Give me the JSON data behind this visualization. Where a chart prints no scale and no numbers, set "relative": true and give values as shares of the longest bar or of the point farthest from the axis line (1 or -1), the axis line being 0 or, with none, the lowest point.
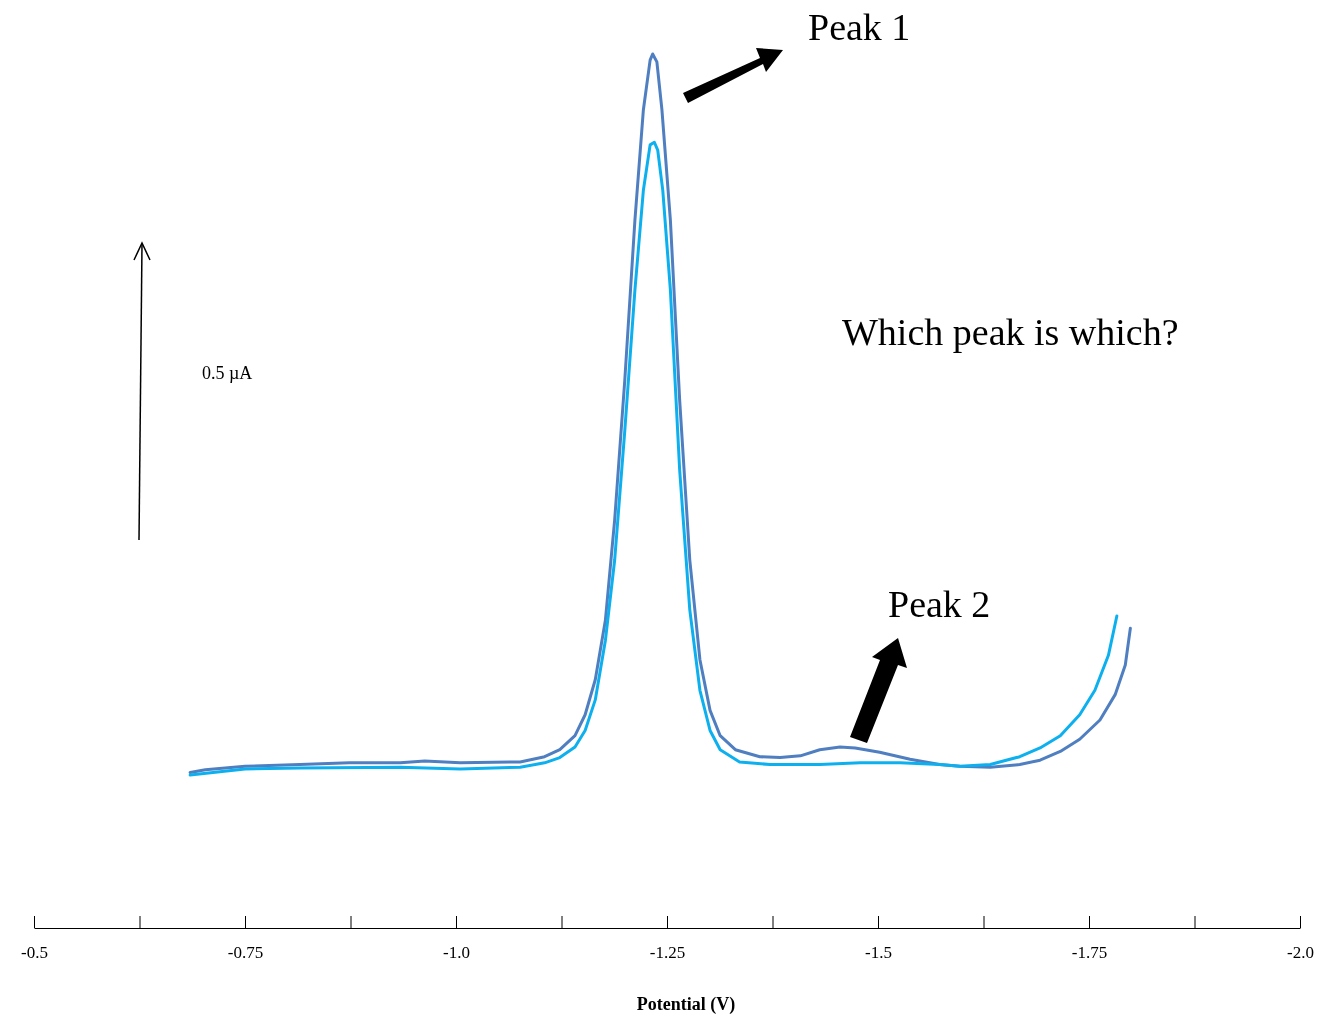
{
  "chart_data": {
    "type": "line",
    "relative": true,
    "xlabel": "Potential (V)",
    "xlim": [
      -0.5,
      -2.0
    ],
    "xticks": [
      -0.5,
      {
        "value": -0.625,
        "label": null
      },
      -0.75,
      {
        "value": -0.875,
        "label": null
      },
      {
        "value": -1.0,
        "label": "-1.0"
      },
      {
        "value": -1.125,
        "label": null
      },
      -1.25,
      {
        "value": -1.375,
        "label": null
      },
      -1.5,
      {
        "value": -1.625,
        "label": null
      },
      -1.75,
      {
        "value": -1.875,
        "label": null
      },
      {
        "value": -2.0,
        "label": "-2.0"
      }
    ],
    "annotations": [
      "Peak 1",
      "Peak 2",
      "Which peak is which?",
      "0.5 µA"
    ],
    "series": [
      {
        "color": "#4f7fc0",
        "x": [
          -0.685,
          -0.703,
          -0.75,
          -0.815,
          -0.874,
          -0.934,
          -0.963,
          -1.005,
          -1.076,
          -1.105,
          -1.123,
          -1.141,
          -1.153,
          -1.165,
          -1.177,
          -1.188,
          -1.2,
          -1.212,
          -1.222,
          -1.23,
          -1.233,
          -1.238,
          -1.244,
          -1.254,
          -1.265,
          -1.277,
          -1.289,
          -1.301,
          -1.313,
          -1.331,
          -1.36,
          -1.384,
          -1.408,
          -1.431,
          -1.455,
          -1.473,
          -1.502,
          -1.538,
          -1.573,
          -1.597,
          -1.633,
          -1.668,
          -1.692,
          -1.716,
          -1.739,
          -1.763,
          -1.781,
          -1.793,
          -1.799
        ],
        "values": [
          0.178,
          0.181,
          0.185,
          0.187,
          0.189,
          0.189,
          0.191,
          0.189,
          0.19,
          0.196,
          0.204,
          0.22,
          0.244,
          0.284,
          0.352,
          0.467,
          0.627,
          0.81,
          0.936,
          0.993,
          1,
          0.991,
          0.936,
          0.81,
          0.604,
          0.421,
          0.307,
          0.249,
          0.22,
          0.204,
          0.196,
          0.195,
          0.197,
          0.204,
          0.207,
          0.206,
          0.201,
          0.193,
          0.187,
          0.185,
          0.184,
          0.187,
          0.192,
          0.202,
          0.216,
          0.238,
          0.267,
          0.301,
          0.343
        ]
      },
      {
        "color": "#0db0ee",
        "x": [
          -0.685,
          -0.75,
          -0.815,
          -0.934,
          -1.005,
          -1.076,
          -1.105,
          -1.123,
          -1.141,
          -1.153,
          -1.165,
          -1.177,
          -1.188,
          -1.2,
          -1.212,
          -1.222,
          -1.23,
          -1.235,
          -1.239,
          -1.245,
          -1.254,
          -1.265,
          -1.277,
          -1.289,
          -1.301,
          -1.313,
          -1.336,
          -1.372,
          -1.431,
          -1.479,
          -1.526,
          -1.573,
          -1.597,
          -1.633,
          -1.668,
          -1.692,
          -1.716,
          -1.739,
          -1.757,
          -1.773,
          -1.783
        ],
        "values": [
          0.175,
          0.182,
          0.183,
          0.184,
          0.182,
          0.184,
          0.189,
          0.195,
          0.207,
          0.226,
          0.261,
          0.329,
          0.421,
          0.569,
          0.73,
          0.844,
          0.896,
          0.899,
          0.89,
          0.844,
          0.73,
          0.524,
          0.364,
          0.272,
          0.226,
          0.204,
          0.19,
          0.187,
          0.187,
          0.189,
          0.189,
          0.187,
          0.185,
          0.187,
          0.196,
          0.206,
          0.22,
          0.244,
          0.272,
          0.312,
          0.357
        ]
      }
    ]
  }
}
